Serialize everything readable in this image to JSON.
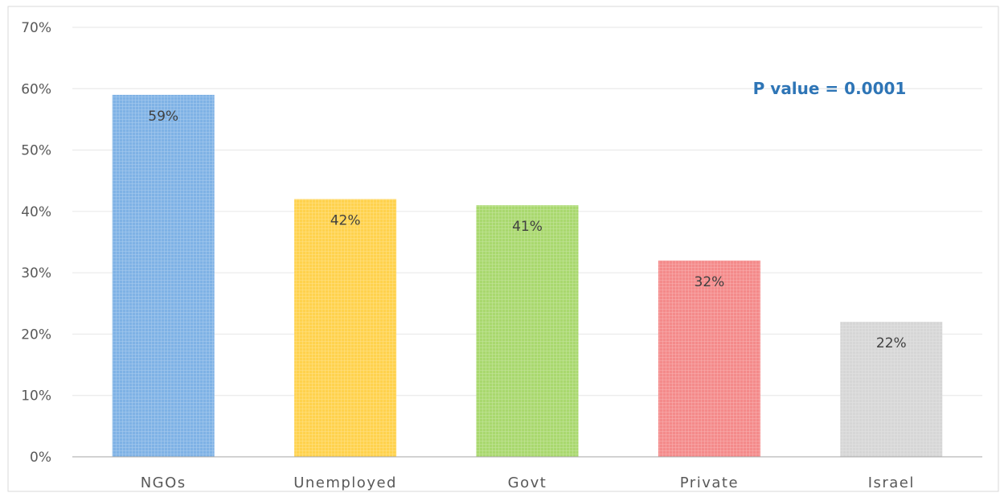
{
  "chart_data": {
    "type": "bar",
    "title": "",
    "xlabel": "",
    "ylabel": "",
    "categories": [
      "NGOs",
      "Unemployed",
      "Govt",
      "Private",
      "Israel"
    ],
    "values": [
      59,
      42,
      41,
      32,
      22
    ],
    "data_labels": [
      "59%",
      "42%",
      "41%",
      "32%",
      "22%"
    ],
    "bar_colors": [
      "#7FB2E5",
      "#FFD24D",
      "#A9D86E",
      "#F48A8A",
      "#D6D6D6"
    ],
    "ylim": [
      0,
      70
    ],
    "yticks": [
      0,
      10,
      20,
      30,
      40,
      50,
      60,
      70
    ],
    "ytick_labels": [
      "0%",
      "10%",
      "20%",
      "30%",
      "40%",
      "50%",
      "60%",
      "70%"
    ],
    "grid": true,
    "annotation": "P value = 0.0001",
    "annotation_color": "#2E75B6",
    "gridline_color": "#E6E6E6",
    "axis_color": "#A6A6A6"
  }
}
